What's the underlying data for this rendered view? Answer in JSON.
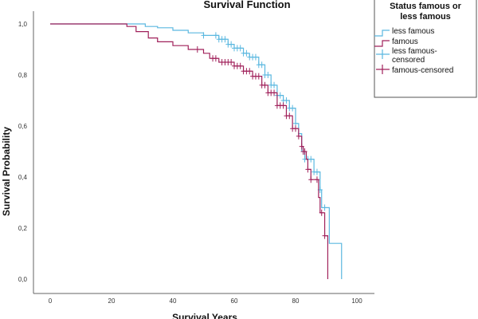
{
  "chart_data": {
    "type": "line",
    "title": "Survival Function",
    "xlabel": "Survival Years",
    "ylabel": "Survival Probability",
    "xlim": [
      0,
      100
    ],
    "ylim": [
      0,
      1
    ],
    "x_ticks": [
      "0",
      "20",
      "40",
      "60",
      "80",
      "100"
    ],
    "y_ticks": [
      "0,0",
      "0,2",
      "0,4",
      "0,6",
      "0,8",
      "1,0"
    ],
    "grid": false,
    "legend": {
      "title": "Status famous or less famous",
      "title_line1": "Status famous or",
      "title_line2": "less famous",
      "placement": "top-right",
      "entries": [
        "less famous",
        "famous",
        "less famous-censored",
        "famous-censored"
      ],
      "entry3_line1": "less famous-",
      "entry3_line2": "censored"
    },
    "series": [
      {
        "name": "less famous",
        "color": "#5bb8e0",
        "steps": [
          [
            0,
            1
          ],
          [
            29,
            1
          ],
          [
            31,
            0.99
          ],
          [
            35,
            0.985
          ],
          [
            40,
            0.975
          ],
          [
            45,
            0.965
          ],
          [
            50,
            0.955
          ],
          [
            55,
            0.94
          ],
          [
            58,
            0.92
          ],
          [
            60,
            0.905
          ],
          [
            63,
            0.885
          ],
          [
            65,
            0.87
          ],
          [
            68,
            0.84
          ],
          [
            70,
            0.8
          ],
          [
            72,
            0.76
          ],
          [
            74,
            0.72
          ],
          [
            76,
            0.7
          ],
          [
            78,
            0.67
          ],
          [
            80,
            0.61
          ],
          [
            81,
            0.57
          ],
          [
            82,
            0.5
          ],
          [
            83,
            0.47
          ],
          [
            86,
            0.42
          ],
          [
            88,
            0.35
          ],
          [
            88.5,
            0.28
          ],
          [
            91,
            0.14
          ],
          [
            95,
            0
          ]
        ],
        "censored": [
          50,
          54,
          55,
          56,
          57,
          58,
          59,
          60,
          61,
          62,
          63,
          64,
          65,
          66,
          67,
          68,
          69,
          70,
          71,
          72,
          73,
          74,
          75,
          76,
          77,
          78,
          79,
          80,
          82.5,
          83,
          84,
          85,
          86,
          87,
          88,
          89.5
        ]
      },
      {
        "name": "famous",
        "color": "#a0205a",
        "steps": [
          [
            0,
            1
          ],
          [
            21,
            1
          ],
          [
            25,
            0.99
          ],
          [
            28,
            0.97
          ],
          [
            32,
            0.945
          ],
          [
            35,
            0.93
          ],
          [
            40,
            0.915
          ],
          [
            45,
            0.9
          ],
          [
            50,
            0.885
          ],
          [
            52,
            0.865
          ],
          [
            55,
            0.85
          ],
          [
            60,
            0.835
          ],
          [
            63,
            0.815
          ],
          [
            66,
            0.795
          ],
          [
            69,
            0.76
          ],
          [
            71,
            0.73
          ],
          [
            74,
            0.68
          ],
          [
            77,
            0.64
          ],
          [
            79,
            0.59
          ],
          [
            81,
            0.56
          ],
          [
            82,
            0.52
          ],
          [
            82.5,
            0.5
          ],
          [
            83.5,
            0.47
          ],
          [
            84,
            0.43
          ],
          [
            85,
            0.39
          ],
          [
            87.5,
            0.32
          ],
          [
            88,
            0.26
          ],
          [
            89.5,
            0.17
          ],
          [
            90.5,
            0
          ]
        ],
        "censored": [
          48,
          53,
          54,
          56,
          57,
          58,
          59,
          60,
          61,
          62,
          63,
          64,
          65,
          66,
          67,
          68,
          69,
          70,
          71,
          72,
          73,
          74,
          75,
          76,
          77,
          78,
          79,
          80,
          81,
          82,
          82.5,
          83,
          84,
          85,
          87,
          88.5,
          89.5
        ]
      }
    ]
  }
}
